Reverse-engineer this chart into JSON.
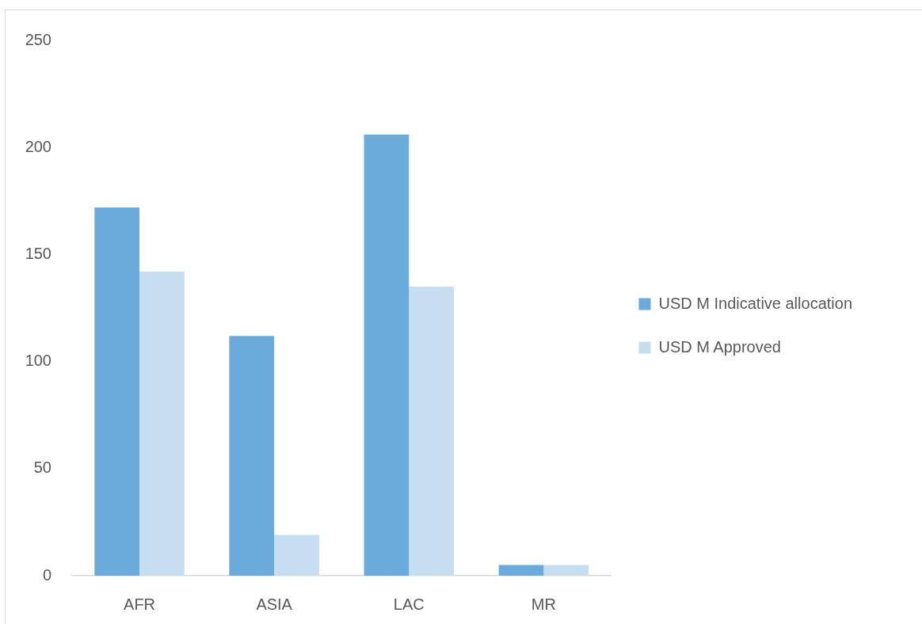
{
  "chart_data": {
    "type": "bar",
    "categories": [
      "AFR",
      "ASIA",
      "LAC",
      "MR"
    ],
    "series": [
      {
        "name": "USD M Indicative allocation",
        "color": "#6aabdc",
        "values": [
          172,
          112,
          206,
          5
        ]
      },
      {
        "name": "USD M Approved",
        "color": "#c7def1",
        "values": [
          142,
          19,
          135,
          5
        ]
      }
    ],
    "ylim": [
      0,
      250
    ],
    "yticks": [
      0,
      50,
      100,
      150,
      200,
      250
    ],
    "grid": false,
    "legend": "right"
  }
}
